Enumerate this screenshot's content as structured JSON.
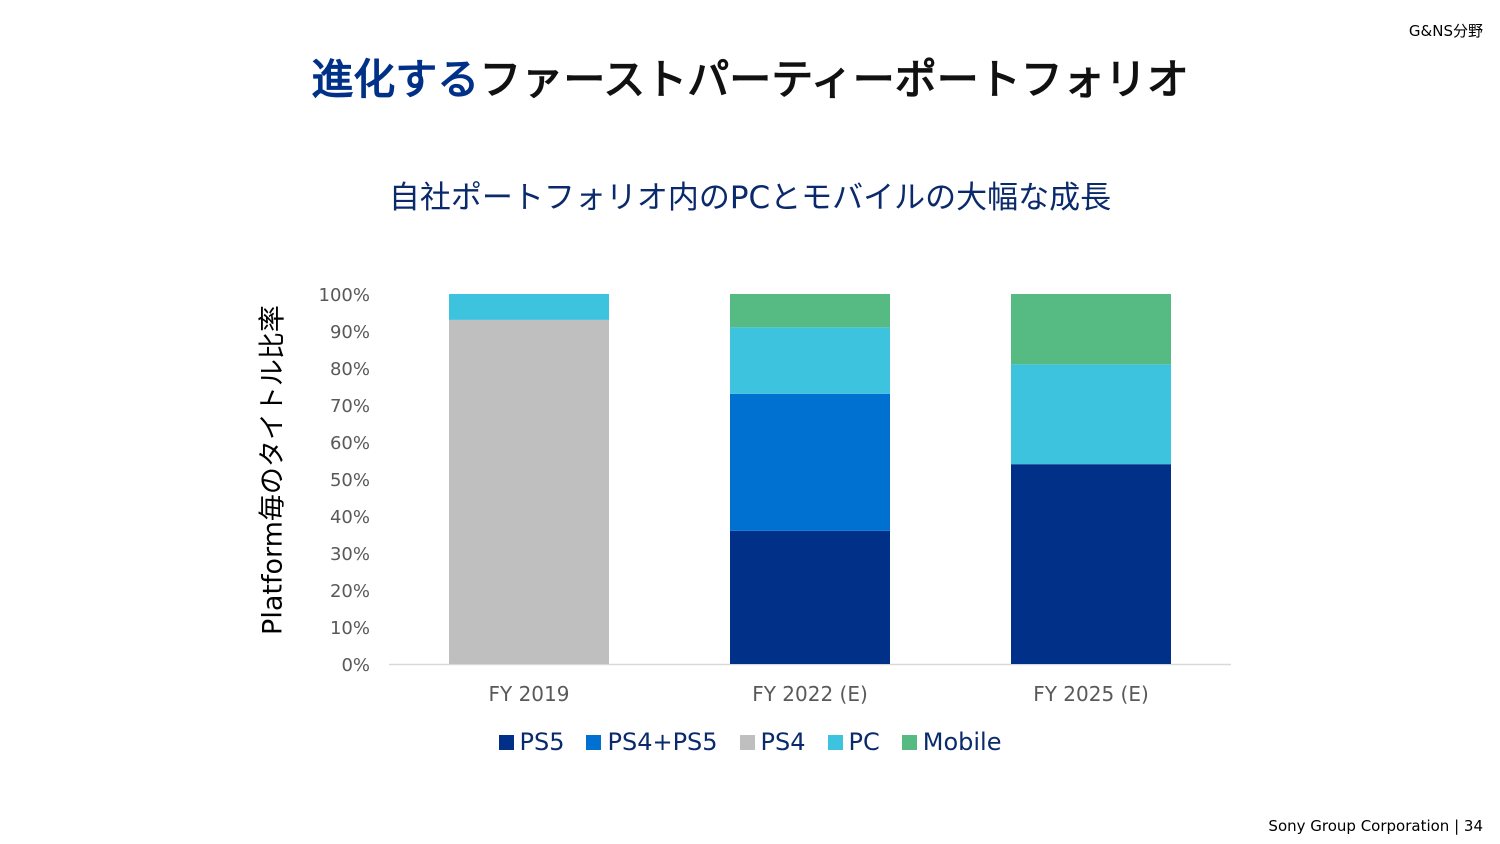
{
  "header": {
    "section": "G&NS分野"
  },
  "title": {
    "accent": "進化する",
    "rest": "ファーストパーティーポートフォリオ"
  },
  "subtitle": "自社ポートフォリオ内のPCとモバイルの大幅な成長",
  "footer": "Sony Group Corporation | 34",
  "chart_data": {
    "type": "bar",
    "stacked": true,
    "title": "",
    "xlabel": "",
    "ylabel": "Platform毎のタイトル比率",
    "ylim": [
      0,
      100
    ],
    "yticks": [
      "0%",
      "10%",
      "20%",
      "30%",
      "40%",
      "50%",
      "60%",
      "70%",
      "80%",
      "90%",
      "100%"
    ],
    "categories": [
      "FY 2019",
      "FY 2022 (E)",
      "FY 2025 (E)"
    ],
    "series": [
      {
        "name": "PS5",
        "color": "#003087",
        "values": [
          0,
          36,
          54
        ]
      },
      {
        "name": "PS4+PS5",
        "color": "#0070D1",
        "values": [
          0,
          37,
          0
        ]
      },
      {
        "name": "PS4",
        "color": "#BFBFBF",
        "values": [
          93,
          0,
          0
        ]
      },
      {
        "name": "PC",
        "color": "#3EC3DE",
        "values": [
          7,
          18,
          27
        ]
      },
      {
        "name": "Mobile",
        "color": "#56BA83",
        "values": [
          0,
          9,
          19
        ]
      }
    ],
    "legend": "bottom",
    "grid": false
  }
}
